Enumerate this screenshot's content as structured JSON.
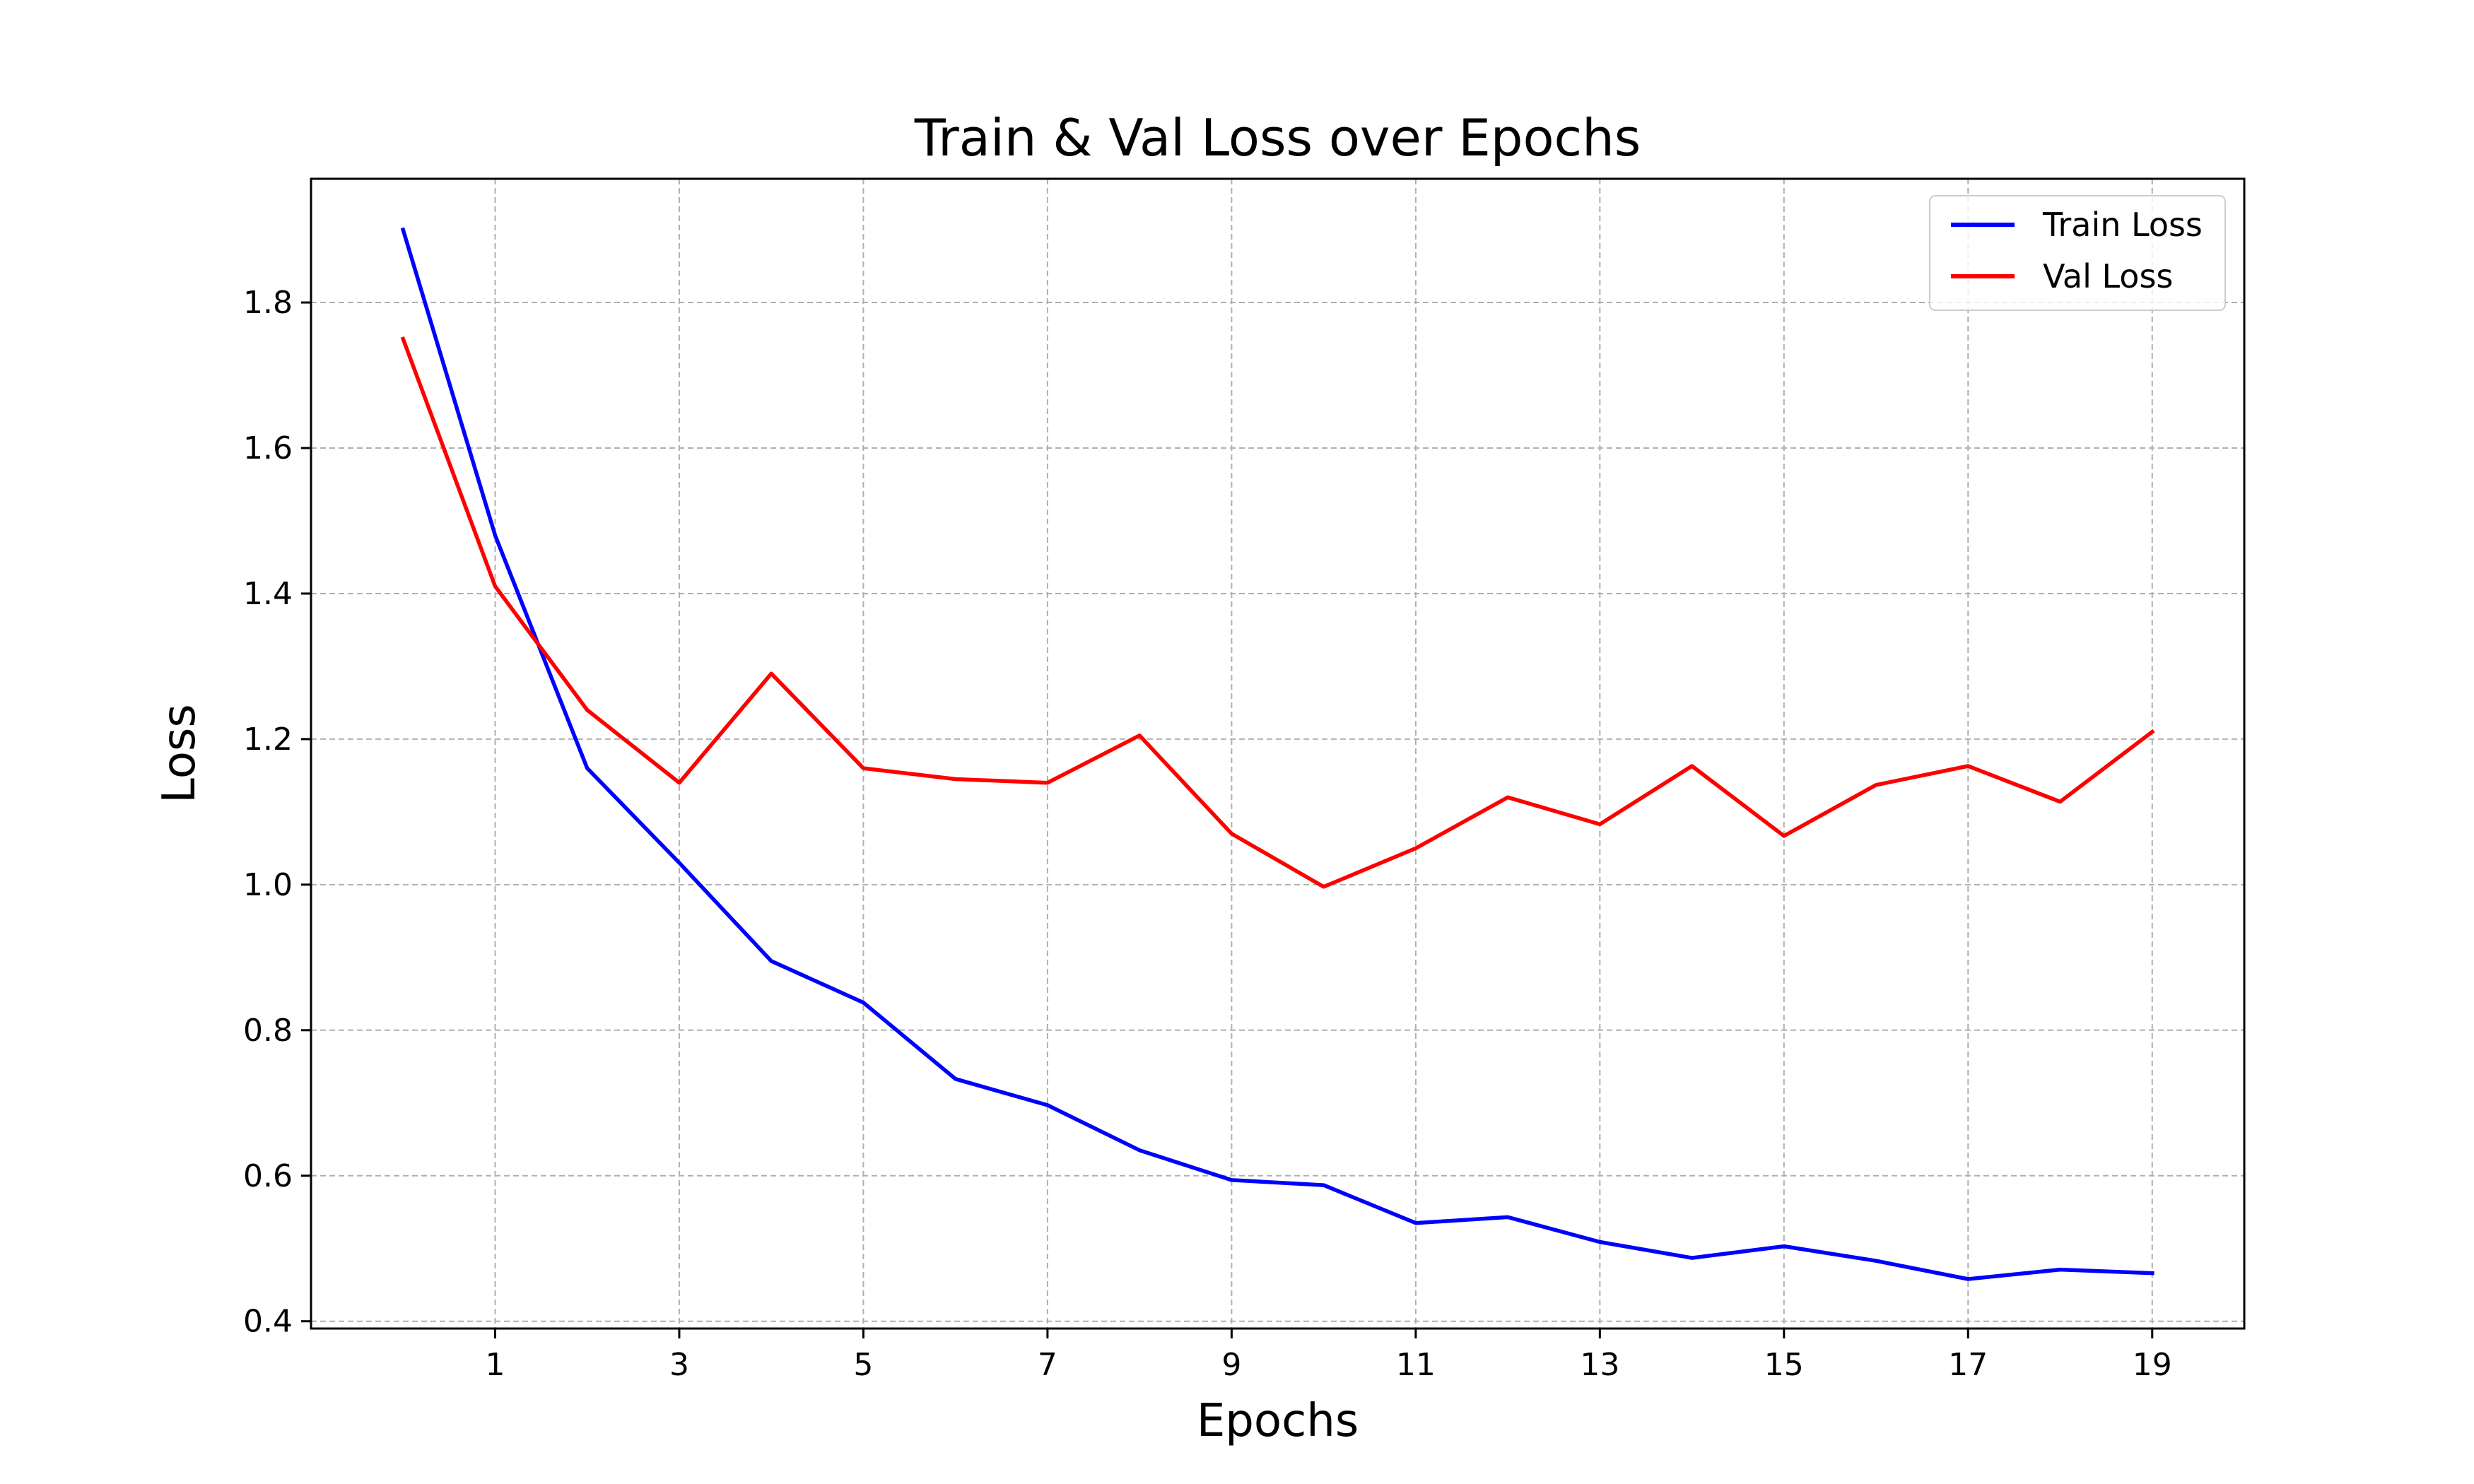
{
  "chart_data": {
    "type": "line",
    "title": "Train & Val Loss over Epochs",
    "xlabel": "Epochs",
    "ylabel": "Loss",
    "xlim": [
      -1,
      20
    ],
    "ylim": [
      0.39,
      1.97
    ],
    "xticks": [
      1,
      3,
      5,
      7,
      9,
      11,
      13,
      15,
      17,
      19
    ],
    "yticks": [
      0.4,
      0.6,
      0.8,
      1.0,
      1.2,
      1.4,
      1.6,
      1.8
    ],
    "ytick_labels": [
      "0.4",
      "0.6",
      "0.8",
      "1.0",
      "1.2",
      "1.4",
      "1.6",
      "1.8"
    ],
    "grid": true,
    "legend_position": "top-right",
    "x": [
      0,
      1,
      2,
      3,
      4,
      5,
      6,
      7,
      8,
      9,
      10,
      11,
      12,
      13,
      14,
      15,
      16,
      17,
      18,
      19
    ],
    "series": [
      {
        "name": "Train Loss",
        "color": "#0000ff",
        "values": [
          1.9,
          1.48,
          1.16,
          1.03,
          0.895,
          0.838,
          0.733,
          0.697,
          0.635,
          0.594,
          0.587,
          0.535,
          0.543,
          0.509,
          0.487,
          0.503,
          0.483,
          0.458,
          0.471,
          0.466
        ]
      },
      {
        "name": "Val Loss",
        "color": "#ff0000",
        "values": [
          1.75,
          1.41,
          1.24,
          1.14,
          1.29,
          1.16,
          1.145,
          1.14,
          1.205,
          1.07,
          0.997,
          1.05,
          1.12,
          1.083,
          1.163,
          1.067,
          1.137,
          1.163,
          1.114,
          1.21
        ]
      }
    ]
  }
}
